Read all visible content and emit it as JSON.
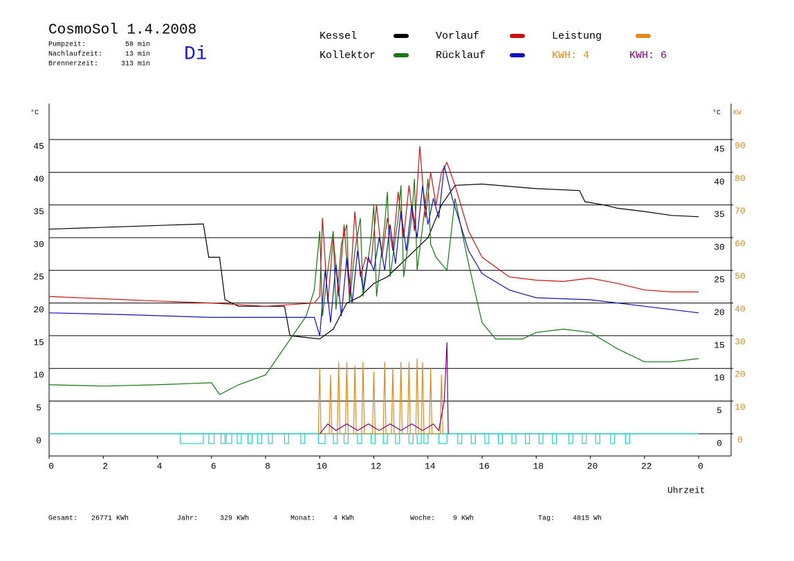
{
  "header": {
    "title": "CosmoSol 1.4.2008",
    "day": "Di",
    "stats": [
      {
        "label": "Pumpzeit:",
        "value": "58 min"
      },
      {
        "label": "Nachlaufzeit:",
        "value": "13 min"
      },
      {
        "label": "Brennerzeit:",
        "value": "313 min"
      }
    ],
    "kwh_labels": [
      {
        "text": "KWH: 4",
        "color": "#e08a1a"
      },
      {
        "text": "KWH: 6",
        "color": "#800080"
      }
    ]
  },
  "chart_data": {
    "type": "line",
    "y_label": "°C",
    "y2_label_left": "°C",
    "y2_label": "KW",
    "x_label": "Uhrzeit",
    "xlim": [
      0,
      25.2
    ],
    "ylim": [
      -3.4,
      50.5
    ],
    "y2lim": [
      -6.8,
      101
    ],
    "xticks": [
      0,
      2,
      4,
      6,
      8,
      10,
      12,
      14,
      16,
      18,
      20,
      22,
      {
        "value": 24,
        "label": "0"
      }
    ],
    "yticks": [
      0,
      5,
      10,
      15,
      20,
      25,
      30,
      35,
      40,
      45
    ],
    "y2ticks": [
      0,
      10,
      20,
      30,
      40,
      50,
      60,
      70,
      80,
      90
    ],
    "grid": true,
    "series": [
      {
        "name": "Kessel",
        "color": "#000000",
        "x": [
          0,
          5.7,
          5.9,
          6.3,
          6.5,
          7,
          8.7,
          8.9,
          10,
          10.5,
          11,
          11.5,
          12,
          12.5,
          13,
          13.5,
          14,
          14.5,
          15,
          16,
          18,
          19.6,
          19.8,
          20.5,
          21,
          22,
          23,
          24
        ],
        "values": [
          31.3,
          32.1,
          27,
          27,
          20.5,
          19.5,
          19.5,
          15,
          14.5,
          16,
          20,
          21,
          23,
          24,
          26,
          28,
          30,
          35,
          38,
          38.2,
          37.5,
          37.2,
          35.5,
          35,
          34.5,
          34,
          33.4,
          33.2
        ]
      },
      {
        "name": "Kollektor",
        "color": "#127812",
        "x": [
          0,
          2,
          4,
          6,
          6.3,
          7,
          8,
          9,
          9.5,
          9.8,
          10,
          10.1,
          10.3,
          10.5,
          10.6,
          10.8,
          11,
          11.1,
          11.3,
          11.5,
          11.6,
          11.9,
          12,
          12.1,
          12.4,
          12.5,
          12.6,
          12.9,
          13,
          13.1,
          13.4,
          13.5,
          13.6,
          13.9,
          14,
          14.1,
          14.3,
          14.7,
          15,
          15.5,
          16,
          16.5,
          17.5,
          18,
          19,
          20,
          21,
          22,
          23,
          24
        ],
        "values": [
          7.5,
          7.3,
          7.5,
          7.8,
          6,
          7.5,
          9,
          15,
          18,
          22,
          31,
          18,
          25,
          31,
          19,
          29,
          32,
          20,
          28,
          33,
          21,
          30,
          35,
          21,
          32,
          37,
          24,
          33,
          38,
          24,
          33,
          39,
          25,
          35,
          39,
          29,
          27,
          25,
          36,
          26,
          17,
          14.5,
          14.5,
          15.5,
          16,
          15.5,
          13,
          11,
          11,
          11.5
        ]
      },
      {
        "name": "Vorlauf",
        "color": "#d01010",
        "x": [
          0,
          4,
          6,
          8,
          9.8,
          10,
          10.1,
          10.3,
          10.5,
          10.7,
          10.9,
          11.1,
          11.3,
          11.5,
          11.7,
          11.9,
          12.1,
          12.3,
          12.5,
          12.7,
          12.9,
          13.1,
          13.3,
          13.5,
          13.7,
          13.9,
          14.1,
          14.3,
          14.5,
          14.7,
          15,
          15.5,
          16,
          17,
          18,
          19,
          20,
          21,
          22,
          23,
          24
        ],
        "values": [
          21,
          20.3,
          20,
          19.5,
          20,
          21,
          33,
          20,
          30,
          21,
          32,
          21,
          34,
          24,
          27,
          26,
          35,
          27,
          33,
          28,
          37,
          30,
          38,
          31,
          44,
          33,
          40,
          35,
          40,
          41.5,
          38,
          31,
          27,
          24,
          23.5,
          23.3,
          23.8,
          23,
          22,
          21.7,
          21.7
        ]
      },
      {
        "name": "Rücklauf",
        "color": "#1010c0",
        "x": [
          0,
          3,
          6,
          9.8,
          10,
          10.2,
          10.4,
          10.6,
          10.8,
          11,
          11.2,
          11.4,
          11.6,
          11.8,
          12,
          12.2,
          12.4,
          12.6,
          12.8,
          13,
          13.2,
          13.4,
          13.6,
          13.8,
          14,
          14.2,
          14.4,
          14.6,
          14.9,
          15.5,
          16,
          17,
          18,
          20,
          22,
          24
        ],
        "values": [
          18.5,
          18.2,
          17.8,
          17.8,
          15,
          25,
          17,
          26,
          18,
          27,
          20,
          28,
          22,
          27,
          25,
          30,
          25,
          32,
          26,
          34,
          28,
          35,
          30,
          38,
          32,
          36,
          33,
          41,
          36,
          28,
          24.5,
          22,
          20.8,
          20.5,
          19.5,
          18.5
        ]
      },
      {
        "name": "Leistung",
        "color": "#e08a1a",
        "axis": "y2",
        "x": [
          9.95,
          10,
          10.05,
          10.35,
          10.4,
          10.45,
          10.65,
          10.7,
          10.75,
          10.95,
          11,
          11.05,
          11.25,
          11.3,
          11.35,
          11.55,
          11.6,
          11.65,
          11.95,
          12,
          12.05,
          12.35,
          12.4,
          12.45,
          12.65,
          12.7,
          12.75,
          12.95,
          13,
          13.05,
          13.25,
          13.3,
          13.35,
          13.55,
          13.6,
          13.65,
          13.75,
          13.8,
          13.85,
          14.05,
          14.1,
          14.15,
          14.45,
          14.5,
          14.55
        ],
        "values": [
          0,
          20,
          0,
          0,
          18,
          0,
          0,
          22,
          0,
          0,
          22,
          0,
          0,
          21,
          0,
          0,
          22,
          0,
          0,
          19,
          0,
          0,
          22,
          0,
          0,
          20,
          0,
          0,
          22,
          0,
          0,
          22,
          0,
          0,
          23,
          0,
          0,
          22,
          0,
          0,
          20,
          0,
          0,
          18,
          0
        ]
      },
      {
        "color": "#800080",
        "axis": "y2",
        "x": [
          10,
          10.3,
          10.6,
          11,
          11.4,
          11.8,
          12.2,
          12.6,
          13,
          13.4,
          13.8,
          14.2,
          14.4,
          14.6,
          14.7,
          14.75
        ],
        "values": [
          0,
          3,
          1,
          3,
          1,
          3,
          1,
          3,
          1,
          3,
          1,
          3,
          1,
          10,
          28,
          0
        ]
      }
    ],
    "pump": {
      "color": "#20d0d0",
      "baseline": 0,
      "level": -1.5,
      "intervals": [
        [
          4.85,
          5.7
        ],
        [
          5.9,
          6.1
        ],
        [
          6.35,
          6.5
        ],
        [
          6.55,
          6.75
        ],
        [
          6.95,
          7.1
        ],
        [
          7.35,
          7.5
        ],
        [
          7.7,
          7.85
        ],
        [
          8.1,
          8.25
        ],
        [
          8.7,
          8.85
        ],
        [
          9.3,
          9.45
        ],
        [
          9.95,
          10.2
        ],
        [
          10.5,
          10.65
        ],
        [
          10.9,
          11.05
        ],
        [
          11.4,
          11.55
        ],
        [
          11.9,
          12.05
        ],
        [
          12.35,
          12.5
        ],
        [
          12.8,
          12.95
        ],
        [
          13.3,
          13.45
        ],
        [
          13.6,
          13.75
        ],
        [
          13.85,
          14.0
        ],
        [
          14.4,
          14.7
        ],
        [
          15.1,
          15.25
        ],
        [
          15.6,
          15.75
        ],
        [
          16.1,
          16.25
        ],
        [
          16.6,
          16.75
        ],
        [
          17.1,
          17.25
        ],
        [
          17.6,
          17.75
        ],
        [
          18.1,
          18.25
        ],
        [
          18.6,
          18.75
        ],
        [
          19.2,
          19.35
        ],
        [
          19.7,
          19.85
        ],
        [
          20.2,
          20.35
        ],
        [
          20.75,
          20.9
        ],
        [
          21.3,
          21.45
        ]
      ]
    }
  },
  "footer": [
    {
      "label": "Gesamt:",
      "value": "26771 KWh"
    },
    {
      "label": "Jahr:",
      "value": "329 KWh"
    },
    {
      "label": "Monat:",
      "value": "4 KWh"
    },
    {
      "label": "Woche:",
      "value": "9 KWh"
    },
    {
      "label": "Tag:",
      "value": "4815 Wh"
    }
  ]
}
